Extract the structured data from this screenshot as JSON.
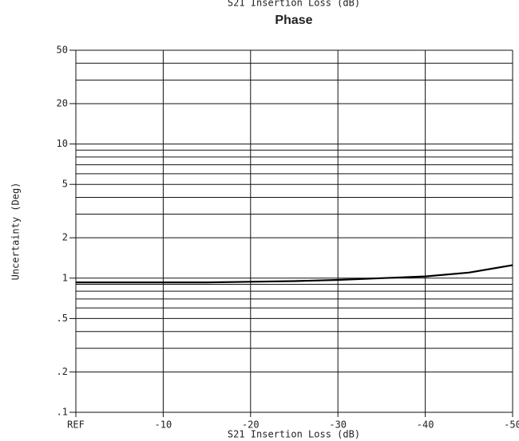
{
  "chart_data": {
    "type": "line",
    "title": "S21 Insertion Loss (dB)",
    "subtitle": "Phase",
    "x_label": "S21 Insertion Loss (dB)",
    "y_label": "Uncertainty (Deg)",
    "y_scale": "log",
    "grid": true,
    "xlim": [
      0,
      -50
    ],
    "ylim": [
      0.1,
      50
    ],
    "xticks": [
      {
        "value": 0,
        "label": "REF"
      },
      -10,
      -20,
      -30,
      -40,
      -50
    ],
    "yticks": [
      {
        "value": 0.1,
        "label": ".1"
      },
      {
        "value": 0.2,
        "label": ".2"
      },
      {
        "value": 0.5,
        "label": ".5"
      },
      1,
      2,
      5,
      10,
      20,
      50
    ],
    "y_grid": [
      0.1,
      0.2,
      0.3,
      0.4,
      0.5,
      0.6,
      0.7,
      0.8,
      0.9,
      1,
      2,
      3,
      4,
      5,
      6,
      7,
      8,
      9,
      10,
      20,
      30,
      40,
      50
    ],
    "x": [
      0,
      -5,
      -10,
      -15,
      -20,
      -25,
      -30,
      -35,
      -40,
      -45,
      -50
    ],
    "series": [
      {
        "color": "#000000",
        "values": [
          0.93,
          0.93,
          0.93,
          0.93,
          0.94,
          0.95,
          0.97,
          1.0,
          1.03,
          1.1,
          1.25
        ]
      }
    ]
  }
}
